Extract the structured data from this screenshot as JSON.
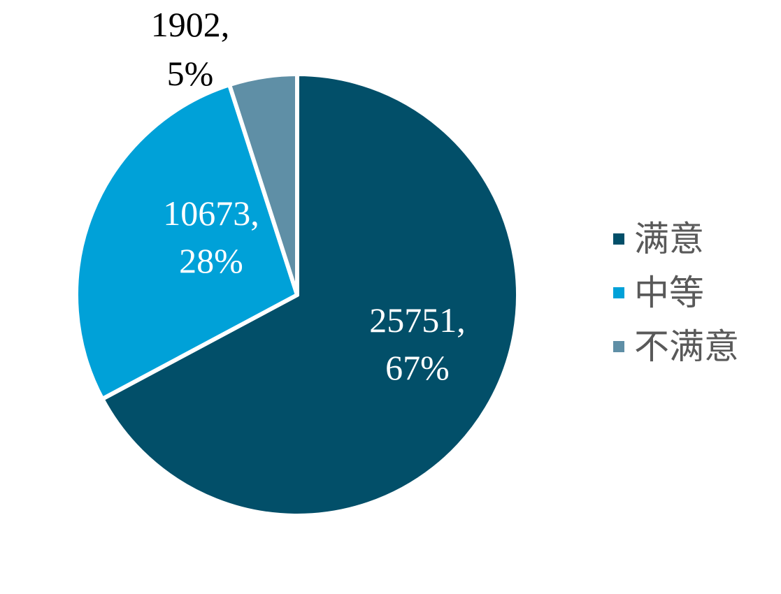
{
  "chart_data": {
    "type": "pie",
    "title": "",
    "categories": [
      "满意",
      "中等",
      "不满意"
    ],
    "values": [
      25751,
      10673,
      1902
    ],
    "percent_labels": [
      "67%",
      "28%",
      "5%"
    ],
    "value_labels": [
      "25751,",
      "10673,",
      "1902,"
    ],
    "colors": [
      "#024f69",
      "#00a1d8",
      "#5f8fa6"
    ],
    "label_colors": [
      "#ffffff",
      "#ffffff",
      "#000000"
    ],
    "legend_position": "right",
    "start_angle": "top",
    "direction": "clockwise"
  }
}
